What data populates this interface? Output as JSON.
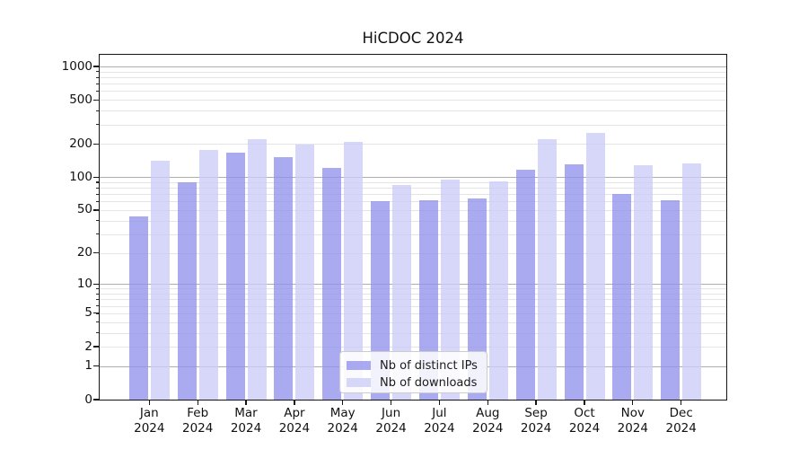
{
  "figure": {
    "title": "HiCDOC 2024",
    "background": "#ffffff"
  },
  "chart_data": {
    "type": "bar",
    "title": "HiCDOC 2024",
    "xlabel": "",
    "ylabel": "",
    "categories": [
      {
        "month": "Jan",
        "year": "2024"
      },
      {
        "month": "Feb",
        "year": "2024"
      },
      {
        "month": "Mar",
        "year": "2024"
      },
      {
        "month": "Apr",
        "year": "2024"
      },
      {
        "month": "May",
        "year": "2024"
      },
      {
        "month": "Jun",
        "year": "2024"
      },
      {
        "month": "Jul",
        "year": "2024"
      },
      {
        "month": "Aug",
        "year": "2024"
      },
      {
        "month": "Sep",
        "year": "2024"
      },
      {
        "month": "Oct",
        "year": "2024"
      },
      {
        "month": "Nov",
        "year": "2024"
      },
      {
        "month": "Dec",
        "year": "2024"
      }
    ],
    "series": [
      {
        "key": "distinct-ips",
        "name": "Nb of distinct IPs",
        "color": "#9292ec",
        "opacity": 0.78,
        "values": [
          44,
          90,
          166,
          151,
          121,
          60,
          62,
          64,
          116,
          130,
          70,
          62
        ]
      },
      {
        "key": "downloads",
        "name": "Nb of downloads",
        "color": "#ccccf7",
        "opacity": 0.78,
        "values": [
          142,
          176,
          220,
          199,
          207,
          85,
          95,
          91,
          221,
          250,
          128,
          134
        ]
      }
    ],
    "y_scale": "log10(value+1)",
    "y_ticks": [
      0,
      1,
      2,
      5,
      10,
      20,
      50,
      100,
      200,
      500,
      1000
    ],
    "y_major_gridlines": [
      1,
      10,
      100,
      1000
    ],
    "y_minor_gridline_mantissas": [
      2,
      3,
      4,
      5,
      6,
      7,
      8,
      9
    ],
    "ylim": [
      0,
      1300
    ],
    "grid": true,
    "legend_position": "lower center"
  },
  "legend": {
    "items": [
      {
        "label": "Nb of distinct IPs",
        "color": "#9292ec"
      },
      {
        "label": "Nb of downloads",
        "color": "#ccccf7"
      }
    ]
  },
  "colors": {
    "bar_distinct_ips": "#9292ec",
    "bar_downloads": "#ccccf7",
    "gridline_major": "#aeaeae",
    "gridline_minor": "#e4e4e4",
    "axis_spine": "#141414",
    "text": "#111111"
  }
}
